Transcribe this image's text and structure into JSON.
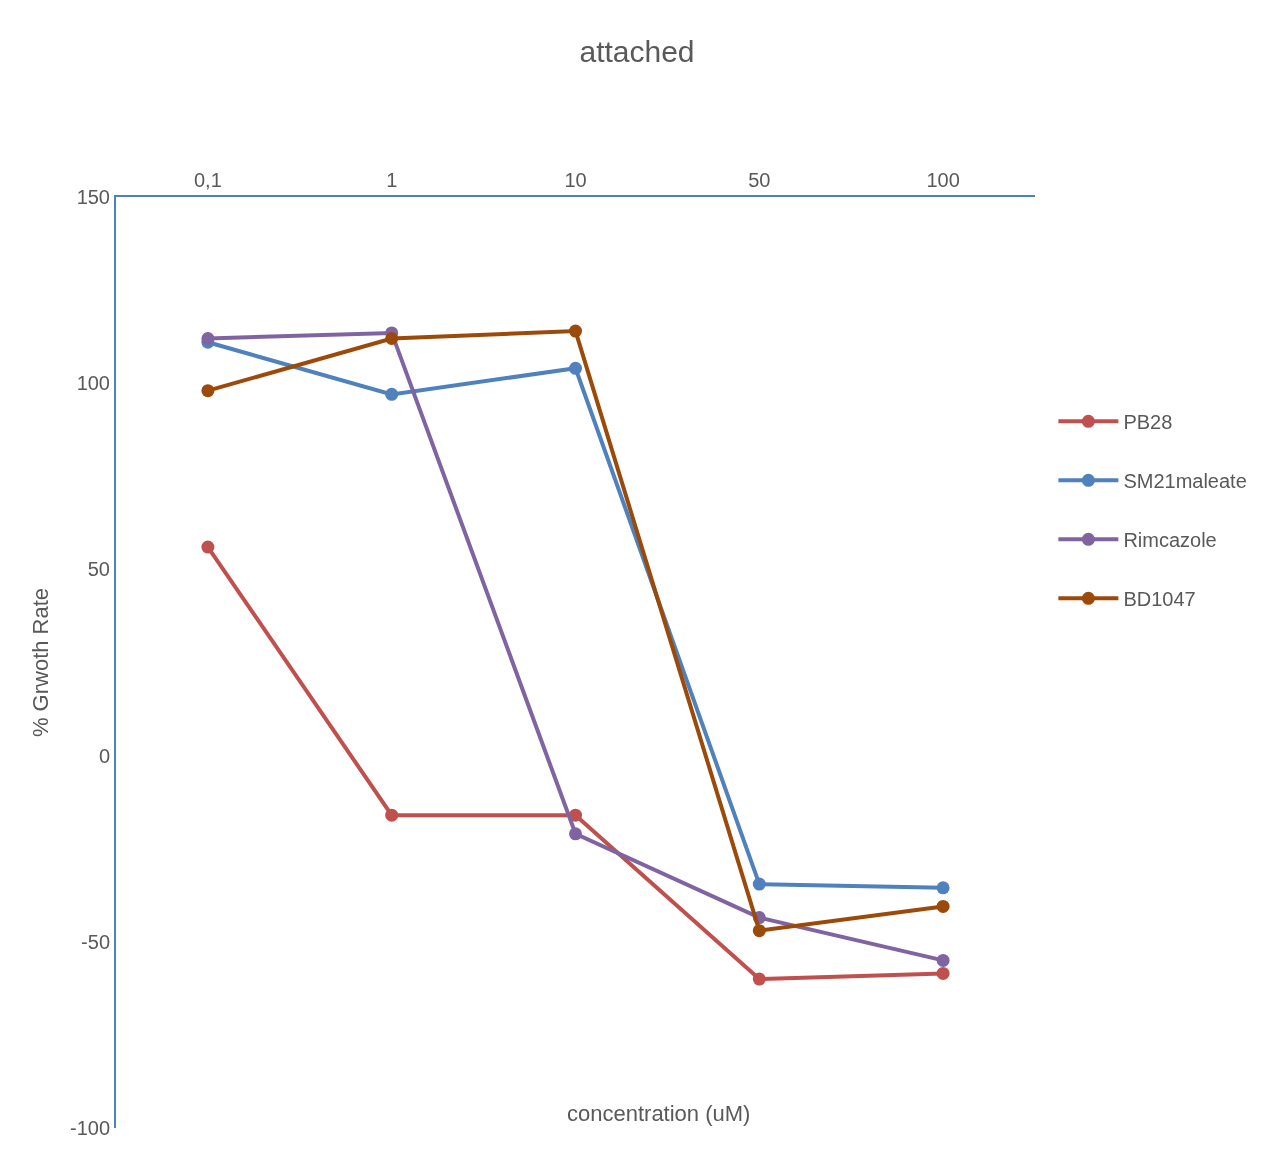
{
  "chart_data": {
    "type": "line",
    "title": "attached",
    "xlabel": "concentration (uM)",
    "ylabel": "% Grwoth Rate",
    "categories": [
      "0,1",
      "1",
      "10",
      "50",
      "100"
    ],
    "series": [
      {
        "name": "PB28",
        "color": "#c0504d",
        "values": [
          56,
          -16,
          -16,
          -60,
          -58.5
        ]
      },
      {
        "name": "SM21maleate",
        "color": "#4f81bd",
        "values": [
          111,
          97,
          104,
          -34.5,
          -35.5
        ]
      },
      {
        "name": "Rimcazole",
        "color": "#8064a2",
        "values": [
          112,
          113.5,
          -21,
          -43.5,
          -55
        ]
      },
      {
        "name": "BD1047",
        "color": "#9c4a0a",
        "values": [
          98,
          112,
          114,
          -47,
          -40.5
        ]
      }
    ],
    "ylim": [
      -100,
      150
    ],
    "yticks": [
      -100,
      -50,
      0,
      50,
      100,
      150
    ],
    "legend": "right",
    "marker": "circle",
    "line_style": "solid"
  }
}
